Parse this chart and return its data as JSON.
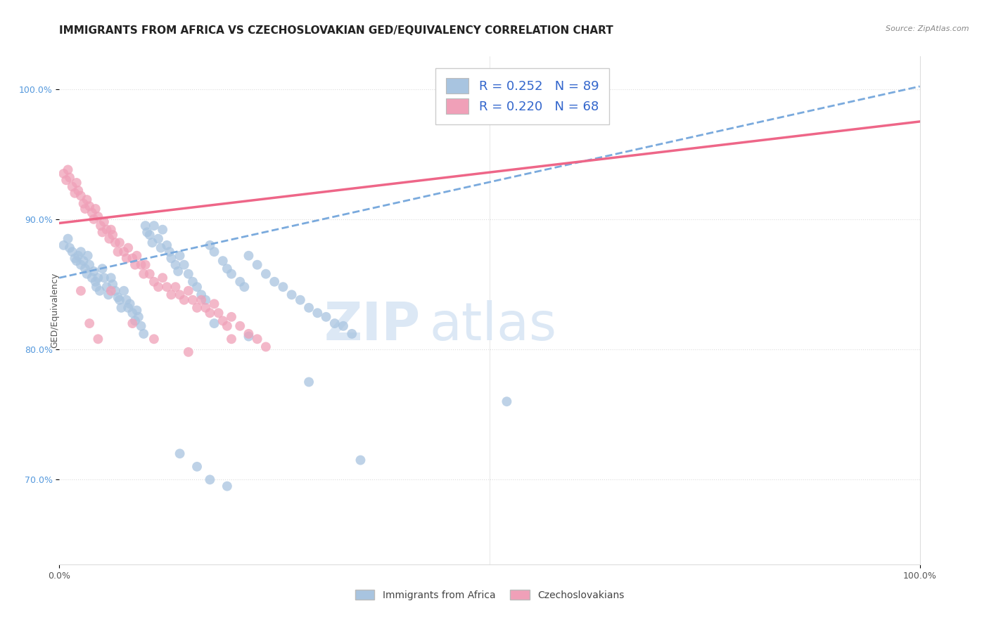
{
  "title": "IMMIGRANTS FROM AFRICA VS CZECHOSLOVAKIAN GED/EQUIVALENCY CORRELATION CHART",
  "source": "Source: ZipAtlas.com",
  "ylabel": "GED/Equivalency",
  "legend_labels": [
    "Immigrants from Africa",
    "Czechoslovakians"
  ],
  "R_blue": 0.252,
  "N_blue": 89,
  "R_pink": 0.22,
  "N_pink": 68,
  "blue_color": "#a8c4e0",
  "pink_color": "#f0a0b8",
  "blue_line_color": "#7aaadd",
  "pink_line_color": "#ee6688",
  "watermark_color": "#dce8f5",
  "title_color": "#222222",
  "source_color": "#888888",
  "legend_text_color": "#3366cc",
  "ytick_color": "#5599dd",
  "xtick_color": "#555555",
  "grid_color": "#dddddd",
  "blue_line_start_y": 0.855,
  "blue_line_end_y": 1.002,
  "pink_line_start_y": 0.897,
  "pink_line_end_y": 0.975,
  "xlim": [
    0.0,
    1.0
  ],
  "ylim": [
    0.635,
    1.025
  ],
  "y_ticks": [
    0.7,
    0.8,
    0.9,
    1.0
  ],
  "y_tick_labels": [
    "70.0%",
    "80.0%",
    "90.0%",
    "100.0%"
  ],
  "blue_x": [
    0.005,
    0.01,
    0.012,
    0.015,
    0.018,
    0.02,
    0.022,
    0.025,
    0.025,
    0.028,
    0.03,
    0.032,
    0.033,
    0.035,
    0.038,
    0.04,
    0.042,
    0.043,
    0.045,
    0.047,
    0.05,
    0.052,
    0.055,
    0.057,
    0.06,
    0.062,
    0.065,
    0.068,
    0.07,
    0.072,
    0.075,
    0.078,
    0.08,
    0.082,
    0.085,
    0.088,
    0.09,
    0.092,
    0.095,
    0.098,
    0.1,
    0.102,
    0.105,
    0.108,
    0.11,
    0.115,
    0.118,
    0.12,
    0.125,
    0.128,
    0.13,
    0.135,
    0.138,
    0.14,
    0.145,
    0.15,
    0.155,
    0.16,
    0.165,
    0.17,
    0.175,
    0.18,
    0.19,
    0.195,
    0.2,
    0.21,
    0.215,
    0.22,
    0.23,
    0.24,
    0.25,
    0.26,
    0.27,
    0.28,
    0.29,
    0.3,
    0.31,
    0.32,
    0.33,
    0.34,
    0.18,
    0.22,
    0.29,
    0.35,
    0.52,
    0.14,
    0.16,
    0.175,
    0.195
  ],
  "blue_y": [
    0.88,
    0.885,
    0.878,
    0.875,
    0.87,
    0.868,
    0.872,
    0.865,
    0.875,
    0.868,
    0.862,
    0.858,
    0.872,
    0.865,
    0.855,
    0.86,
    0.852,
    0.848,
    0.855,
    0.845,
    0.862,
    0.855,
    0.848,
    0.842,
    0.855,
    0.85,
    0.845,
    0.84,
    0.838,
    0.832,
    0.845,
    0.838,
    0.832,
    0.835,
    0.828,
    0.822,
    0.83,
    0.825,
    0.818,
    0.812,
    0.895,
    0.89,
    0.888,
    0.882,
    0.895,
    0.885,
    0.878,
    0.892,
    0.88,
    0.875,
    0.87,
    0.865,
    0.86,
    0.872,
    0.865,
    0.858,
    0.852,
    0.848,
    0.842,
    0.838,
    0.88,
    0.875,
    0.868,
    0.862,
    0.858,
    0.852,
    0.848,
    0.872,
    0.865,
    0.858,
    0.852,
    0.848,
    0.842,
    0.838,
    0.832,
    0.828,
    0.825,
    0.82,
    0.818,
    0.812,
    0.82,
    0.81,
    0.775,
    0.715,
    0.76,
    0.72,
    0.71,
    0.7,
    0.695
  ],
  "pink_x": [
    0.005,
    0.008,
    0.01,
    0.012,
    0.015,
    0.018,
    0.02,
    0.022,
    0.025,
    0.028,
    0.03,
    0.032,
    0.035,
    0.038,
    0.04,
    0.042,
    0.045,
    0.048,
    0.05,
    0.052,
    0.055,
    0.058,
    0.06,
    0.062,
    0.065,
    0.068,
    0.07,
    0.075,
    0.078,
    0.08,
    0.085,
    0.088,
    0.09,
    0.095,
    0.098,
    0.1,
    0.105,
    0.11,
    0.115,
    0.12,
    0.125,
    0.13,
    0.135,
    0.14,
    0.145,
    0.15,
    0.155,
    0.16,
    0.165,
    0.17,
    0.175,
    0.18,
    0.185,
    0.19,
    0.195,
    0.2,
    0.21,
    0.22,
    0.23,
    0.24,
    0.025,
    0.035,
    0.045,
    0.06,
    0.085,
    0.11,
    0.15,
    0.2
  ],
  "pink_y": [
    0.935,
    0.93,
    0.938,
    0.932,
    0.925,
    0.92,
    0.928,
    0.922,
    0.918,
    0.912,
    0.908,
    0.915,
    0.91,
    0.905,
    0.9,
    0.908,
    0.902,
    0.895,
    0.89,
    0.898,
    0.892,
    0.885,
    0.892,
    0.888,
    0.882,
    0.875,
    0.882,
    0.875,
    0.87,
    0.878,
    0.87,
    0.865,
    0.872,
    0.865,
    0.858,
    0.865,
    0.858,
    0.852,
    0.848,
    0.855,
    0.848,
    0.842,
    0.848,
    0.842,
    0.838,
    0.845,
    0.838,
    0.832,
    0.838,
    0.832,
    0.828,
    0.835,
    0.828,
    0.822,
    0.818,
    0.825,
    0.818,
    0.812,
    0.808,
    0.802,
    0.845,
    0.82,
    0.808,
    0.845,
    0.82,
    0.808,
    0.798,
    0.808
  ]
}
